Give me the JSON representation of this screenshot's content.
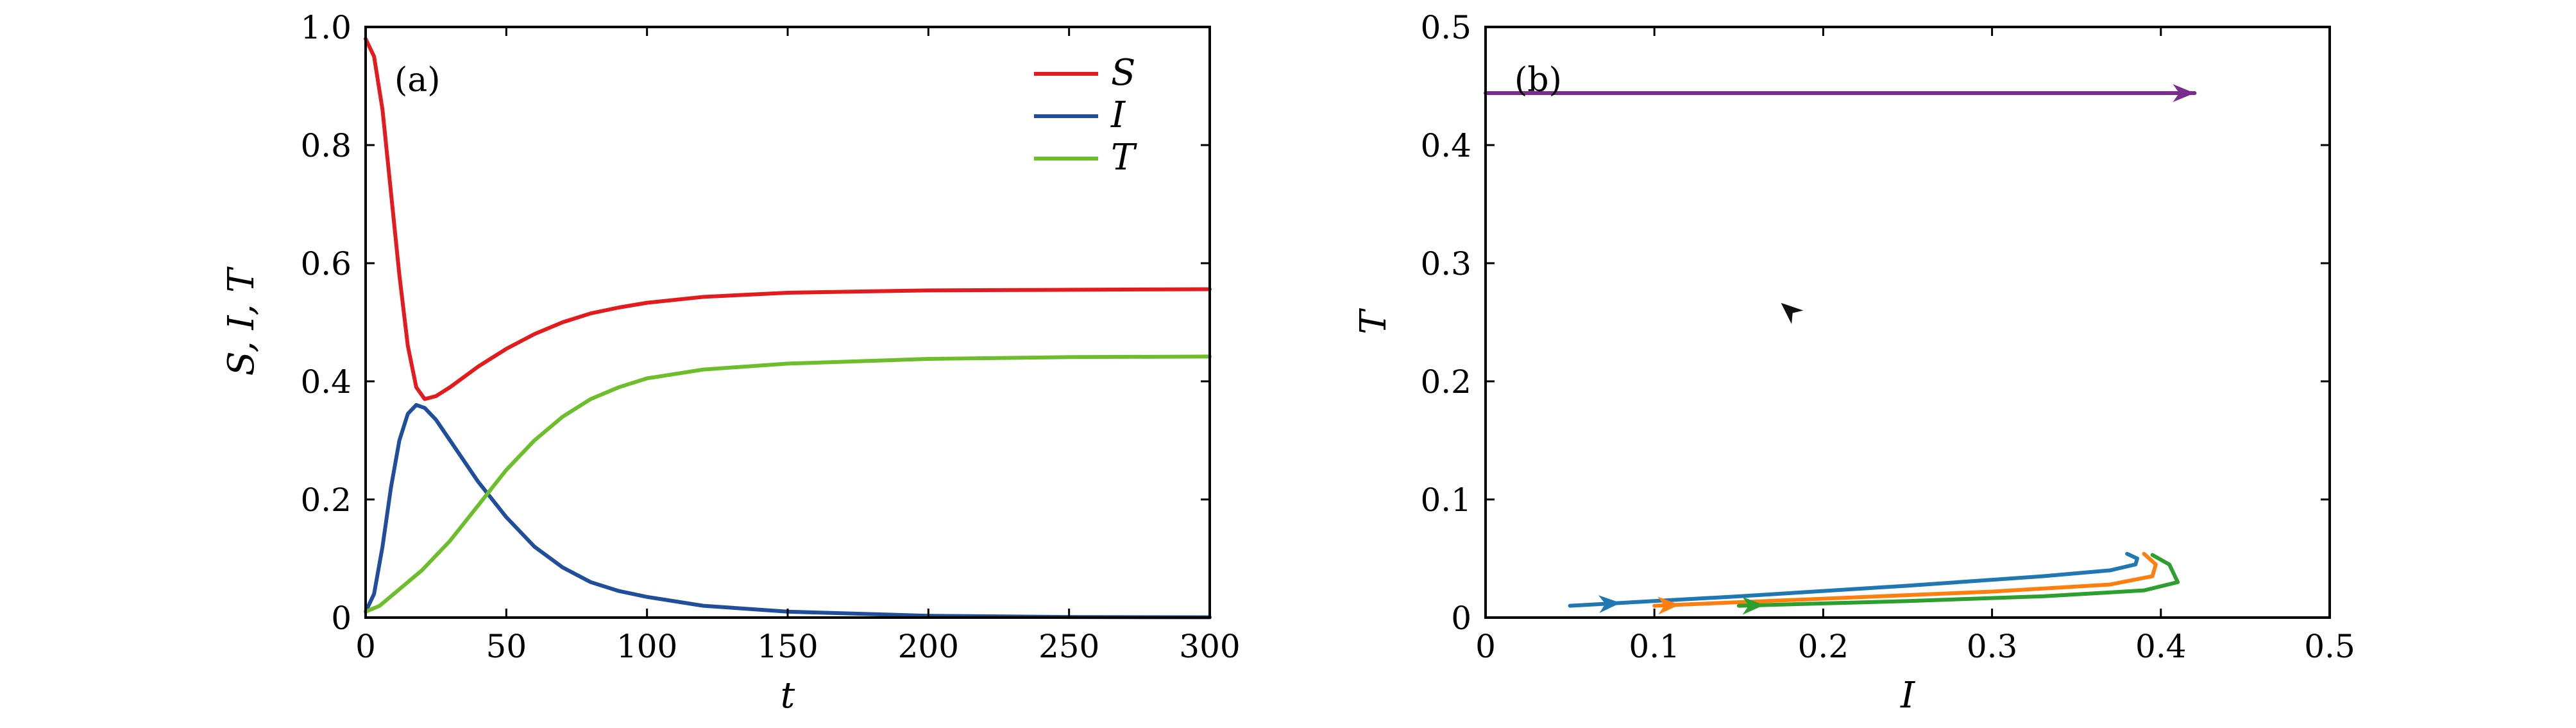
{
  "chart_data": [
    {
      "type": "line",
      "panel_label": "(a)",
      "xlabel": "t",
      "ylabel": "S, I, T",
      "xlim": [
        0,
        300
      ],
      "ylim": [
        0,
        1
      ],
      "xticks": [
        "0",
        "50",
        "100",
        "150",
        "200",
        "250",
        "300"
      ],
      "yticks": [
        "0",
        "0.2",
        "0.4",
        "0.6",
        "0.8",
        "1.0"
      ],
      "legend_position": "top-right",
      "series": [
        {
          "name": "S",
          "color": "#e41a1c",
          "points": [
            [
              0,
              0.98
            ],
            [
              3,
              0.95
            ],
            [
              6,
              0.86
            ],
            [
              9,
              0.72
            ],
            [
              12,
              0.58
            ],
            [
              15,
              0.46
            ],
            [
              18,
              0.39
            ],
            [
              21,
              0.37
            ],
            [
              25,
              0.375
            ],
            [
              30,
              0.39
            ],
            [
              40,
              0.425
            ],
            [
              50,
              0.455
            ],
            [
              60,
              0.48
            ],
            [
              70,
              0.5
            ],
            [
              80,
              0.515
            ],
            [
              90,
              0.525
            ],
            [
              100,
              0.533
            ],
            [
              120,
              0.543
            ],
            [
              150,
              0.55
            ],
            [
              200,
              0.554
            ],
            [
              250,
              0.555
            ],
            [
              300,
              0.556
            ]
          ]
        },
        {
          "name": "I",
          "color": "#1f4e9c",
          "points": [
            [
              0,
              0.01
            ],
            [
              3,
              0.04
            ],
            [
              6,
              0.12
            ],
            [
              9,
              0.22
            ],
            [
              12,
              0.3
            ],
            [
              15,
              0.345
            ],
            [
              18,
              0.36
            ],
            [
              21,
              0.355
            ],
            [
              25,
              0.335
            ],
            [
              30,
              0.3
            ],
            [
              40,
              0.23
            ],
            [
              50,
              0.17
            ],
            [
              60,
              0.12
            ],
            [
              70,
              0.085
            ],
            [
              80,
              0.06
            ],
            [
              90,
              0.045
            ],
            [
              100,
              0.035
            ],
            [
              120,
              0.02
            ],
            [
              150,
              0.01
            ],
            [
              200,
              0.003
            ],
            [
              250,
              0.001
            ],
            [
              300,
              0.0005
            ]
          ]
        },
        {
          "name": "T",
          "color": "#6cbf2a",
          "points": [
            [
              0,
              0.01
            ],
            [
              5,
              0.02
            ],
            [
              10,
              0.04
            ],
            [
              20,
              0.08
            ],
            [
              30,
              0.13
            ],
            [
              40,
              0.19
            ],
            [
              50,
              0.25
            ],
            [
              60,
              0.3
            ],
            [
              70,
              0.34
            ],
            [
              80,
              0.37
            ],
            [
              90,
              0.39
            ],
            [
              100,
              0.405
            ],
            [
              120,
              0.42
            ],
            [
              150,
              0.43
            ],
            [
              200,
              0.438
            ],
            [
              250,
              0.441
            ],
            [
              300,
              0.442
            ]
          ]
        }
      ]
    },
    {
      "type": "line",
      "panel_label": "(b)",
      "xlabel": "I",
      "ylabel": "T",
      "xlim": [
        0,
        0.5
      ],
      "ylim": [
        0,
        0.5
      ],
      "xticks": [
        "0",
        "0.1",
        "0.2",
        "0.3",
        "0.4",
        "0.5"
      ],
      "yticks": [
        "0",
        "0.1",
        "0.2",
        "0.3",
        "0.4",
        "0.5"
      ],
      "series": [
        {
          "color": "#1f77b4",
          "points": [
            [
              0.05,
              0.01
            ],
            [
              0.15,
              0.018
            ],
            [
              0.25,
              0.027
            ],
            [
              0.33,
              0.035
            ],
            [
              0.37,
              0.04
            ],
            [
              0.385,
              0.045
            ],
            [
              0.386,
              0.05
            ],
            [
              0.38,
              0.054
            ]
          ],
          "arrows": [
            {
              "at": 0.08,
              "direction": "right"
            }
          ]
        },
        {
          "color": "#ff7f0e",
          "points": [
            [
              0.1,
              0.01
            ],
            [
              0.2,
              0.016
            ],
            [
              0.3,
              0.022
            ],
            [
              0.37,
              0.028
            ],
            [
              0.395,
              0.035
            ],
            [
              0.397,
              0.045
            ],
            [
              0.39,
              0.054
            ]
          ],
          "arrows": [
            {
              "at": 0.115,
              "direction": "right"
            }
          ]
        },
        {
          "color": "#2ca02c",
          "points": [
            [
              0.15,
              0.01
            ],
            [
              0.25,
              0.014
            ],
            [
              0.33,
              0.018
            ],
            [
              0.39,
              0.023
            ],
            [
              0.41,
              0.03
            ],
            [
              0.405,
              0.045
            ],
            [
              0.395,
              0.053
            ]
          ],
          "arrows": [
            {
              "at": 0.165,
              "direction": "right"
            }
          ]
        },
        {
          "color": "#7b2d8e",
          "points": [
            [
              0.42,
              0.444
            ],
            [
              0.41,
              0.444
            ],
            [
              0.0,
              0.444
            ]
          ],
          "arrows": [
            {
              "at": 0.42,
              "direction": "right"
            },
            {
              "at": 0.175,
              "direction": "up-left"
            }
          ]
        }
      ]
    }
  ]
}
